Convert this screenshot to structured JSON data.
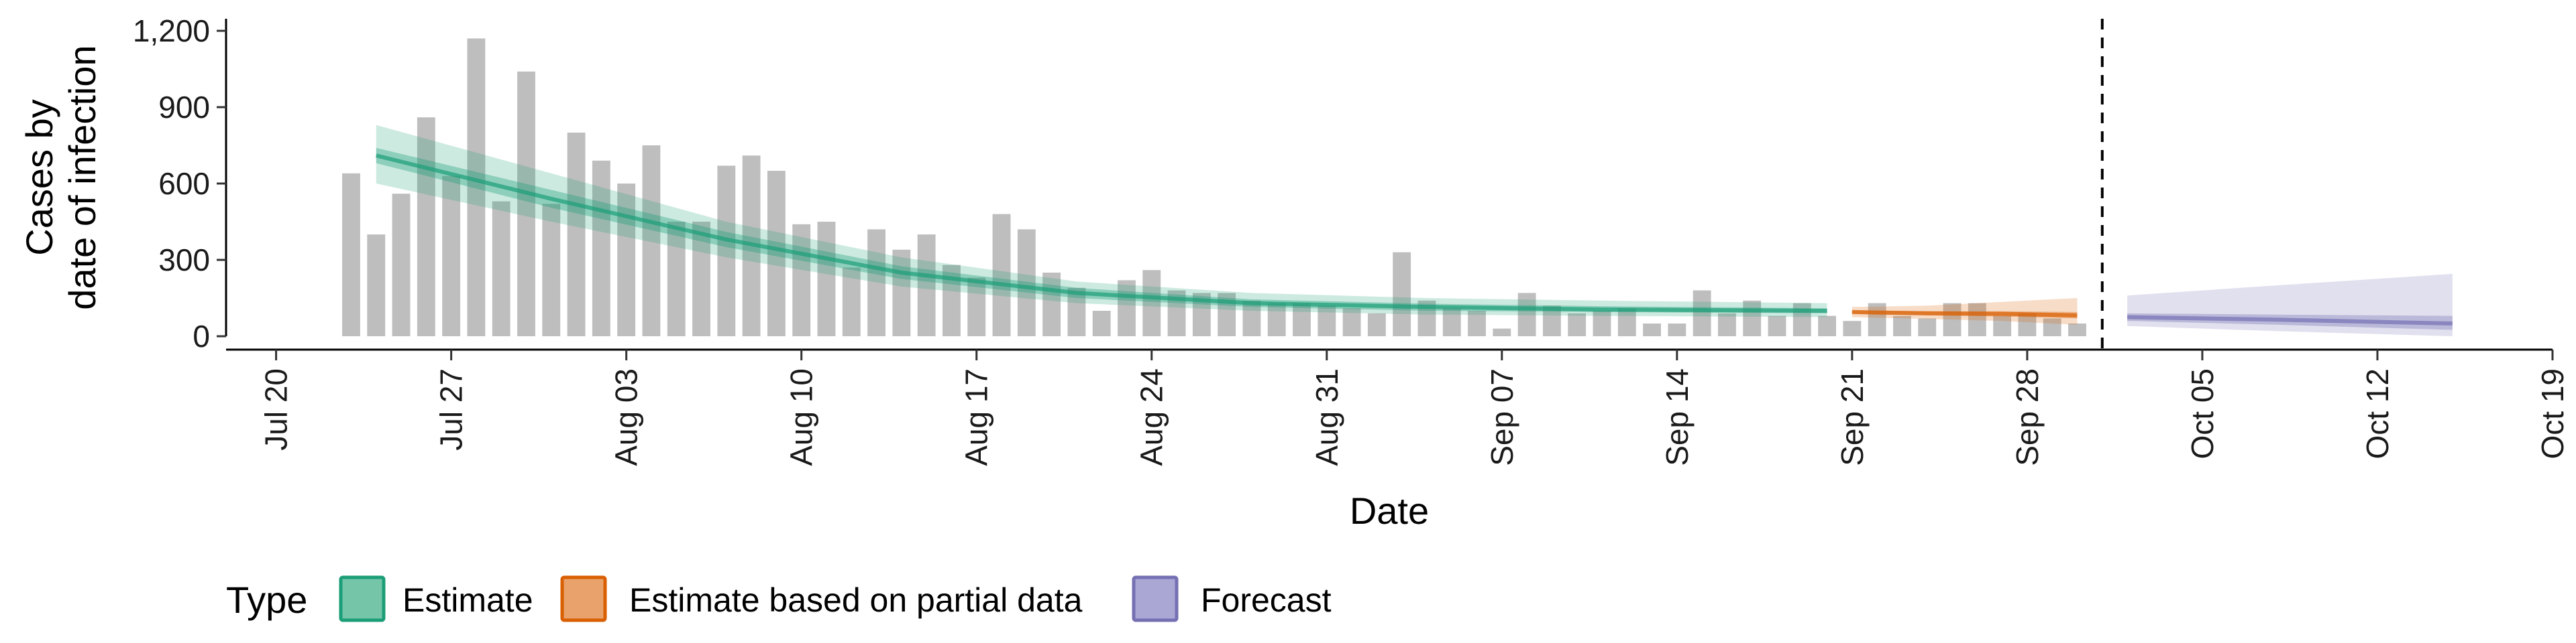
{
  "chart_data": {
    "type": "bar",
    "xlabel": "Date",
    "ylabel_lines": [
      "Cases by",
      "date of infection"
    ],
    "ylim": [
      0,
      1200
    ],
    "y_ticks": [
      0,
      300,
      600,
      900,
      1200
    ],
    "y_tick_labels": [
      "0",
      "300",
      "600",
      "900",
      "1,200"
    ],
    "x_range": [
      "2020-07-18",
      "2020-10-19"
    ],
    "x_ticks": [
      "2020-07-20",
      "2020-07-27",
      "2020-08-03",
      "2020-08-10",
      "2020-08-17",
      "2020-08-24",
      "2020-08-31",
      "2020-09-07",
      "2020-09-14",
      "2020-09-21",
      "2020-09-28",
      "2020-10-05",
      "2020-10-12",
      "2020-10-19"
    ],
    "x_tick_labels": [
      "Jul 20",
      "Jul 27",
      "Aug 03",
      "Aug 10",
      "Aug 17",
      "Aug 24",
      "Aug 31",
      "Sep 07",
      "Sep 14",
      "Sep 21",
      "Sep 28",
      "Oct 05",
      "Oct 12",
      "Oct 19"
    ],
    "bar_color": "#bebebe",
    "bars": {
      "dates": [
        "2020-07-23",
        "2020-07-24",
        "2020-07-25",
        "2020-07-26",
        "2020-07-27",
        "2020-07-28",
        "2020-07-29",
        "2020-07-30",
        "2020-07-31",
        "2020-08-01",
        "2020-08-02",
        "2020-08-03",
        "2020-08-04",
        "2020-08-05",
        "2020-08-06",
        "2020-08-07",
        "2020-08-08",
        "2020-08-09",
        "2020-08-10",
        "2020-08-11",
        "2020-08-12",
        "2020-08-13",
        "2020-08-14",
        "2020-08-15",
        "2020-08-16",
        "2020-08-17",
        "2020-08-18",
        "2020-08-19",
        "2020-08-20",
        "2020-08-21",
        "2020-08-22",
        "2020-08-23",
        "2020-08-24",
        "2020-08-25",
        "2020-08-26",
        "2020-08-27",
        "2020-08-28",
        "2020-08-29",
        "2020-08-30",
        "2020-08-31",
        "2020-09-01",
        "2020-09-02",
        "2020-09-03",
        "2020-09-04",
        "2020-09-05",
        "2020-09-06",
        "2020-09-07",
        "2020-09-08",
        "2020-09-09",
        "2020-09-10",
        "2020-09-11",
        "2020-09-12",
        "2020-09-13",
        "2020-09-14",
        "2020-09-15",
        "2020-09-16",
        "2020-09-17",
        "2020-09-18",
        "2020-09-19",
        "2020-09-20",
        "2020-09-21",
        "2020-09-22",
        "2020-09-23",
        "2020-09-24",
        "2020-09-25",
        "2020-09-26",
        "2020-09-27",
        "2020-09-28",
        "2020-09-29",
        "2020-09-30"
      ],
      "values": [
        640,
        400,
        560,
        860,
        630,
        1170,
        530,
        1040,
        520,
        800,
        690,
        600,
        750,
        450,
        450,
        670,
        710,
        650,
        440,
        450,
        270,
        420,
        340,
        400,
        280,
        230,
        480,
        420,
        250,
        190,
        100,
        220,
        260,
        180,
        170,
        170,
        140,
        130,
        130,
        120,
        110,
        90,
        330,
        140,
        110,
        100,
        30,
        170,
        120,
        90,
        100,
        110,
        50,
        50,
        180,
        90,
        140,
        80,
        130,
        80,
        60,
        130,
        80,
        70,
        130,
        130,
        80,
        90,
        70,
        50
      ]
    },
    "series": [
      {
        "name": "Estimate",
        "color": "#1b9e77",
        "dates": [
          "2020-07-24",
          "2020-07-31",
          "2020-08-07",
          "2020-08-14",
          "2020-08-21",
          "2020-08-28",
          "2020-09-04",
          "2020-09-11",
          "2020-09-20"
        ],
        "median": [
          710,
          540,
          380,
          250,
          170,
          130,
          115,
          105,
          100
        ],
        "lower_50": [
          680,
          505,
          350,
          225,
          150,
          115,
          100,
          95,
          90
        ],
        "upper_50": [
          740,
          575,
          410,
          275,
          190,
          145,
          128,
          118,
          110
        ],
        "lower_90": [
          600,
          450,
          310,
          195,
          130,
          100,
          85,
          80,
          75
        ],
        "upper_90": [
          830,
          640,
          450,
          310,
          215,
          170,
          150,
          140,
          130
        ]
      },
      {
        "name": "Estimate based on partial data",
        "color": "#d95f02",
        "dates": [
          "2020-09-21",
          "2020-09-24",
          "2020-09-27",
          "2020-09-30"
        ],
        "median": [
          95,
          90,
          88,
          82
        ],
        "lower_50": [
          88,
          82,
          78,
          70
        ],
        "upper_50": [
          102,
          98,
          98,
          95
        ],
        "lower_90": [
          75,
          68,
          60,
          45
        ],
        "upper_90": [
          115,
          120,
          135,
          150
        ]
      },
      {
        "name": "Forecast",
        "color": "#7570b3",
        "dates": [
          "2020-10-02",
          "2020-10-08",
          "2020-10-15"
        ],
        "median": [
          75,
          65,
          50
        ],
        "lower_50": [
          60,
          45,
          25
        ],
        "upper_50": [
          90,
          85,
          80
        ],
        "lower_90": [
          40,
          20,
          0
        ],
        "upper_90": [
          160,
          200,
          245
        ]
      }
    ],
    "vline": "2020-10-01",
    "legend": {
      "title": "Type",
      "position": "bottom-left",
      "items": [
        {
          "label": "Estimate",
          "fill": "#75c6a9",
          "stroke": "#1b9e77"
        },
        {
          "label": "Estimate based on partial data",
          "fill": "#e9a26c",
          "stroke": "#d95f02"
        },
        {
          "label": "Forecast",
          "fill": "#aaa7d4",
          "stroke": "#7570b3"
        }
      ]
    },
    "grid": false
  }
}
